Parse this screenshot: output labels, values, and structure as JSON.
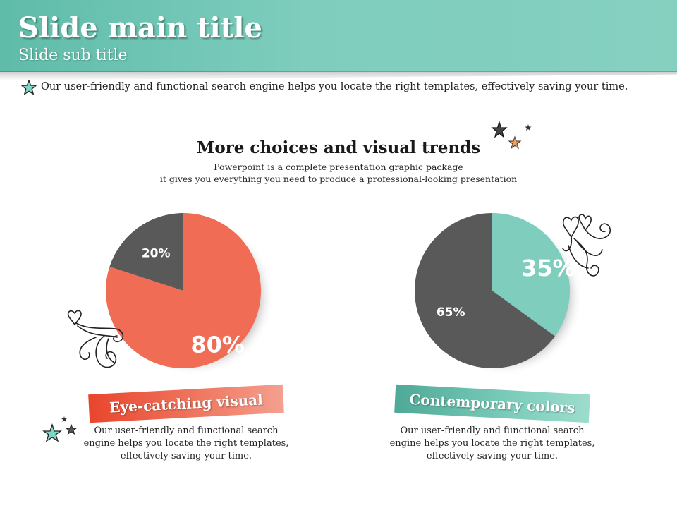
{
  "header": {
    "title": "Slide main title",
    "subtitle": "Slide sub title"
  },
  "intro": {
    "text": "Our user-friendly and functional search engine helps you locate the right templates, effectively saving your time.",
    "icon": "star-icon"
  },
  "section": {
    "title": "More choices and visual trends",
    "desc_line1": "Powerpoint is a complete presentation graphic package",
    "desc_line2": "it gives you everything you need to produce a professional-looking presentation"
  },
  "left_panel": {
    "label": "Eye-catching visual",
    "caption_line1": "Our user-friendly and functional search",
    "caption_line2": "engine helps you locate the right templates,",
    "caption_line3": "effectively saving your time."
  },
  "right_panel": {
    "label": "Contemporary colors",
    "caption_line1": "Our user-friendly and functional search",
    "caption_line2": "engine helps you locate the right templates,",
    "caption_line3": "effectively saving your time."
  },
  "colors": {
    "accent_green": "#7ecdbd",
    "accent_red": "#f06c55",
    "dark_gray": "#595959"
  },
  "chart_data": [
    {
      "type": "pie",
      "title": "",
      "slices": [
        {
          "label": "80%",
          "value": 80,
          "color": "#f06c55"
        },
        {
          "label": "20%",
          "value": 20,
          "color": "#595959"
        }
      ]
    },
    {
      "type": "pie",
      "title": "",
      "slices": [
        {
          "label": "35%",
          "value": 35,
          "color": "#7ecdbd"
        },
        {
          "label": "65%",
          "value": 65,
          "color": "#595959"
        }
      ]
    }
  ]
}
